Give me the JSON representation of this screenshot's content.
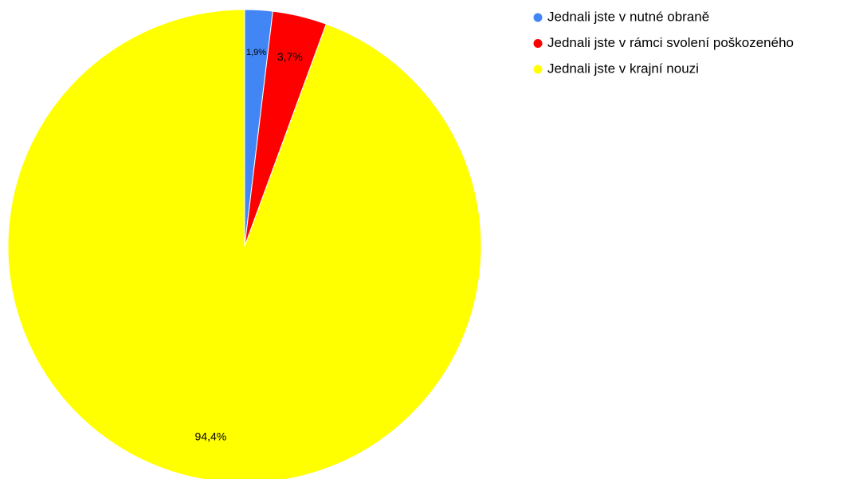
{
  "chart_data": {
    "type": "pie",
    "categories": [
      "Jednali jste v nutné obraně",
      "Jednali jste v rámci svolení poškozeného",
      "Jednali jste v krajní nouzi"
    ],
    "values": [
      1.9,
      3.7,
      94.4
    ],
    "value_labels": [
      "1,9%",
      "3,7%",
      "94,4%"
    ],
    "colors": [
      "#4285f4",
      "#ff0000",
      "#ffff00"
    ],
    "legend": "right"
  }
}
